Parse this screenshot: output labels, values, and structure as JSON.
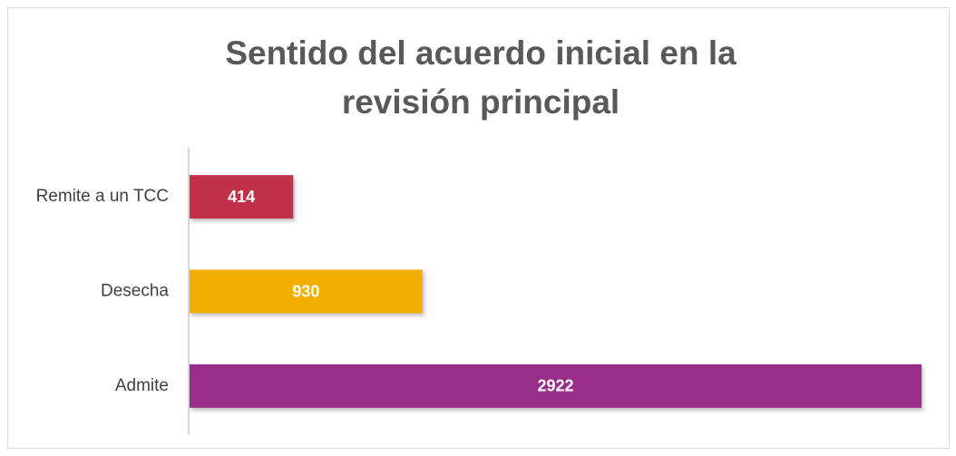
{
  "chart_data": {
    "type": "hbar",
    "title": "Sentido del acuerdo inicial en la revisión principal",
    "categories": [
      "Remite a un TCC",
      "Desecha",
      "Admite"
    ],
    "values": [
      414,
      930,
      2922
    ],
    "colors": [
      "#c0304a",
      "#efae00",
      "#982d88"
    ]
  }
}
